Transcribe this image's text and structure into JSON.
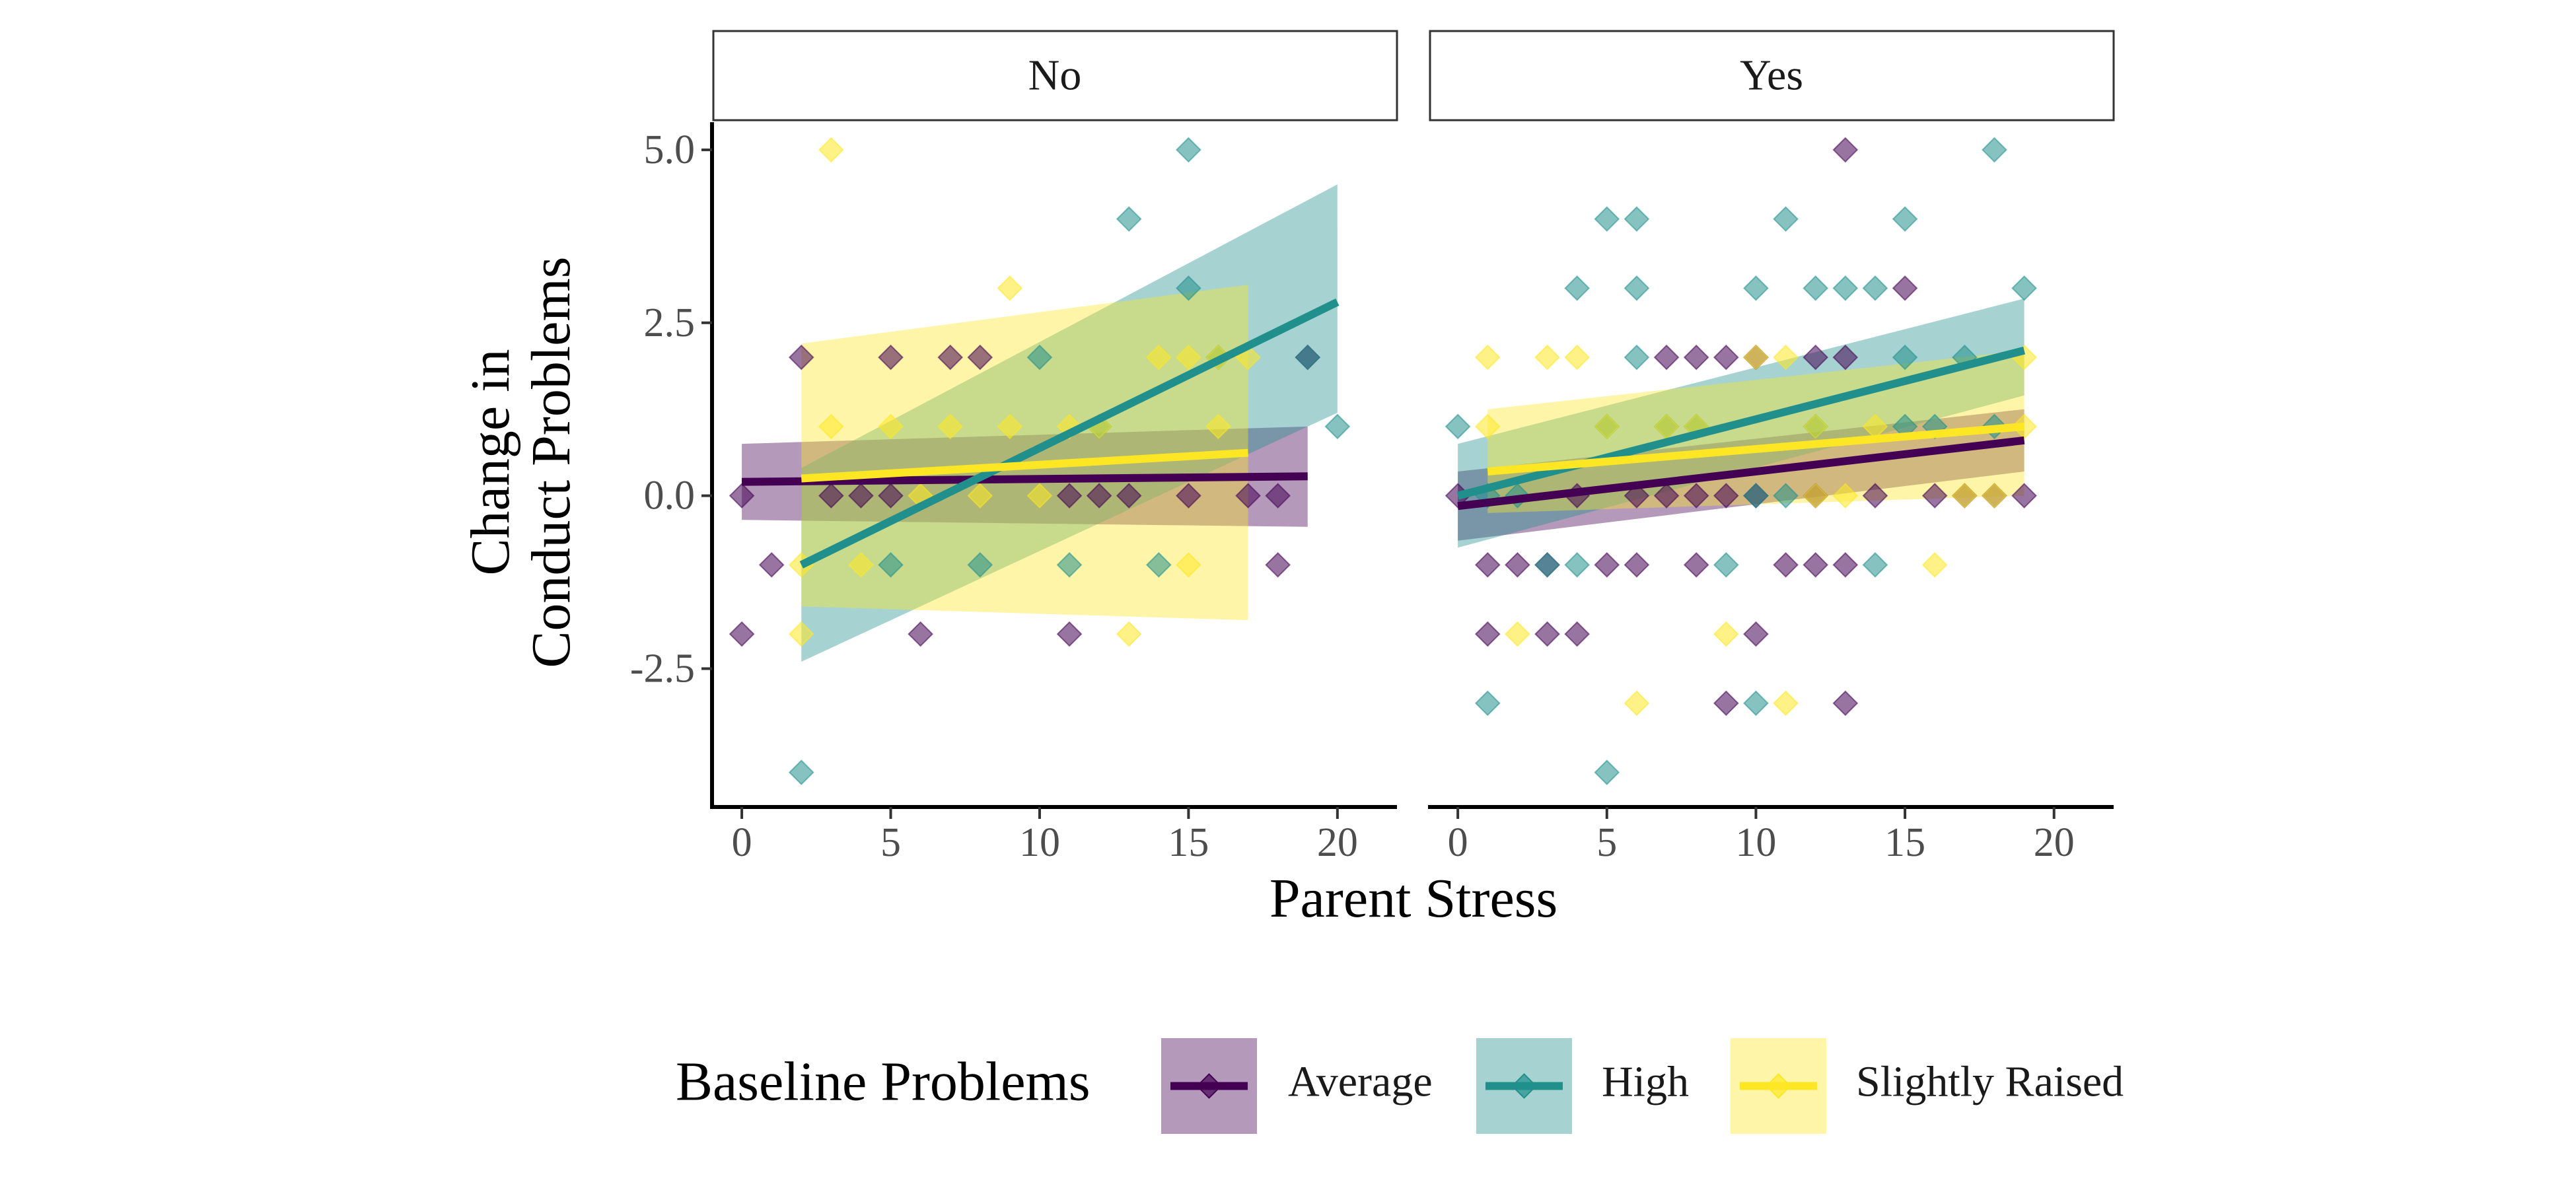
{
  "chart_data": {
    "type": "scatter",
    "facets": [
      "No",
      "Yes"
    ],
    "xlabel": "Parent Stress",
    "ylabel_lines": [
      "Change in",
      "Conduct Problems"
    ],
    "x_ticks": [
      "0",
      "5",
      "10",
      "15",
      "20"
    ],
    "x_tick_values": [
      0,
      5,
      10,
      15,
      20
    ],
    "y_ticks": [
      "5.0",
      "2.5",
      "0.0",
      "-2.5"
    ],
    "y_tick_values": [
      5,
      2.5,
      0,
      -2.5
    ],
    "xlim": [
      -1,
      22
    ],
    "ylim": [
      -4.5,
      5.4
    ],
    "legend": {
      "title": "Baseline Problems",
      "placement": "bottom",
      "entries": [
        "Average",
        "High",
        "Slightly Raised"
      ]
    },
    "colors": {
      "Average": "#440154",
      "High": "#21908C",
      "Slightly Raised": "#FDE725"
    },
    "series": [
      {
        "name": "Average",
        "panels": {
          "No": {
            "points": [
              [
                0,
                0
              ],
              [
                0,
                -2
              ],
              [
                1,
                -1
              ],
              [
                2,
                2
              ],
              [
                3,
                0
              ],
              [
                4,
                0
              ],
              [
                5,
                2
              ],
              [
                5,
                0
              ],
              [
                6,
                -2
              ],
              [
                7,
                2
              ],
              [
                8,
                2
              ],
              [
                11,
                0
              ],
              [
                11,
                -2
              ],
              [
                12,
                0
              ],
              [
                13,
                0
              ],
              [
                15,
                0
              ],
              [
                17,
                0
              ],
              [
                18,
                0
              ],
              [
                18,
                -1
              ],
              [
                19,
                2
              ]
            ],
            "fit": {
              "x": [
                0,
                19
              ],
              "y": [
                0.2,
                0.28
              ]
            },
            "band": {
              "lo_start": -0.35,
              "hi_start": 0.75,
              "lo_end": -0.45,
              "hi_end": 1.0
            }
          },
          "Yes": {
            "points": [
              [
                0,
                0
              ],
              [
                1,
                -1
              ],
              [
                1,
                -2
              ],
              [
                2,
                -1
              ],
              [
                3,
                -2
              ],
              [
                3,
                -1
              ],
              [
                4,
                0
              ],
              [
                4,
                -2
              ],
              [
                5,
                -1
              ],
              [
                6,
                0
              ],
              [
                6,
                -1
              ],
              [
                7,
                0
              ],
              [
                7,
                2
              ],
              [
                8,
                0
              ],
              [
                8,
                -1
              ],
              [
                8,
                2
              ],
              [
                9,
                0
              ],
              [
                9,
                -3
              ],
              [
                9,
                2
              ],
              [
                10,
                0
              ],
              [
                10,
                -2
              ],
              [
                10,
                2
              ],
              [
                11,
                -1
              ],
              [
                12,
                0
              ],
              [
                12,
                -1
              ],
              [
                12,
                2
              ],
              [
                13,
                2
              ],
              [
                13,
                -1
              ],
              [
                13,
                5
              ],
              [
                13,
                -3
              ],
              [
                14,
                0
              ],
              [
                15,
                3
              ],
              [
                16,
                0
              ],
              [
                17,
                0
              ],
              [
                18,
                0
              ],
              [
                19,
                0
              ]
            ],
            "fit": {
              "x": [
                0,
                19
              ],
              "y": [
                -0.15,
                0.8
              ]
            },
            "band": {
              "lo_start": -0.65,
              "hi_start": 0.35,
              "lo_end": 0.35,
              "hi_end": 1.25
            }
          }
        }
      },
      {
        "name": "High",
        "panels": {
          "No": {
            "points": [
              [
                2,
                -4
              ],
              [
                5,
                -1
              ],
              [
                8,
                -1
              ],
              [
                10,
                2
              ],
              [
                11,
                -1
              ],
              [
                12,
                1
              ],
              [
                13,
                4
              ],
              [
                14,
                -1
              ],
              [
                15,
                5
              ],
              [
                15,
                3
              ],
              [
                16,
                2
              ],
              [
                19,
                2
              ],
              [
                20,
                1
              ]
            ],
            "fit": {
              "x": [
                2,
                20
              ],
              "y": [
                -1.0,
                2.8
              ]
            },
            "band": {
              "lo_start": -2.4,
              "hi_start": 0.4,
              "lo_end": 1.2,
              "hi_end": 4.5
            }
          },
          "Yes": {
            "points": [
              [
                0,
                1
              ],
              [
                1,
                -3
              ],
              [
                1,
                0
              ],
              [
                2,
                0
              ],
              [
                3,
                -1
              ],
              [
                4,
                3
              ],
              [
                4,
                -1
              ],
              [
                5,
                4
              ],
              [
                5,
                1
              ],
              [
                5,
                -4
              ],
              [
                6,
                4
              ],
              [
                6,
                3
              ],
              [
                6,
                2
              ],
              [
                7,
                1
              ],
              [
                8,
                1
              ],
              [
                9,
                -1
              ],
              [
                10,
                3
              ],
              [
                10,
                -3
              ],
              [
                10,
                0
              ],
              [
                11,
                4
              ],
              [
                11,
                0
              ],
              [
                12,
                3
              ],
              [
                12,
                1
              ],
              [
                13,
                3
              ],
              [
                14,
                3
              ],
              [
                14,
                -1
              ],
              [
                15,
                4
              ],
              [
                15,
                1
              ],
              [
                15,
                2
              ],
              [
                16,
                1
              ],
              [
                17,
                2
              ],
              [
                18,
                5
              ],
              [
                18,
                1
              ],
              [
                19,
                3
              ]
            ],
            "fit": {
              "x": [
                0,
                19
              ],
              "y": [
                0.0,
                2.1
              ]
            },
            "band": {
              "lo_start": -0.75,
              "hi_start": 0.75,
              "lo_end": 1.45,
              "hi_end": 2.85
            }
          }
        }
      },
      {
        "name": "Slightly Raised",
        "panels": {
          "No": {
            "points": [
              [
                2,
                -1
              ],
              [
                2,
                -2
              ],
              [
                3,
                5
              ],
              [
                3,
                1
              ],
              [
                4,
                -1
              ],
              [
                5,
                1
              ],
              [
                6,
                0
              ],
              [
                7,
                1
              ],
              [
                8,
                0
              ],
              [
                9,
                3
              ],
              [
                9,
                1
              ],
              [
                10,
                0
              ],
              [
                11,
                1
              ],
              [
                12,
                1
              ],
              [
                13,
                -2
              ],
              [
                14,
                2
              ],
              [
                15,
                -1
              ],
              [
                15,
                2
              ],
              [
                16,
                1
              ],
              [
                16,
                2
              ],
              [
                17,
                2
              ]
            ],
            "fit": {
              "x": [
                2,
                17
              ],
              "y": [
                0.25,
                0.62
              ]
            },
            "band": {
              "lo_start": -1.6,
              "hi_start": 2.2,
              "lo_end": -1.8,
              "hi_end": 3.05
            }
          },
          "Yes": {
            "points": [
              [
                1,
                2
              ],
              [
                1,
                1
              ],
              [
                2,
                -2
              ],
              [
                3,
                2
              ],
              [
                4,
                2
              ],
              [
                5,
                1
              ],
              [
                6,
                -3
              ],
              [
                7,
                1
              ],
              [
                8,
                1
              ],
              [
                9,
                -2
              ],
              [
                10,
                2
              ],
              [
                11,
                -3
              ],
              [
                11,
                2
              ],
              [
                12,
                1
              ],
              [
                12,
                0
              ],
              [
                13,
                0
              ],
              [
                14,
                1
              ],
              [
                16,
                -1
              ],
              [
                17,
                0
              ],
              [
                18,
                0
              ],
              [
                19,
                2
              ],
              [
                19,
                1
              ]
            ],
            "fit": {
              "x": [
                1,
                19
              ],
              "y": [
                0.35,
                1.0
              ]
            },
            "band": {
              "lo_start": -0.25,
              "hi_start": 1.25,
              "lo_end": 0.0,
              "hi_end": 2.1
            }
          }
        }
      }
    ]
  }
}
